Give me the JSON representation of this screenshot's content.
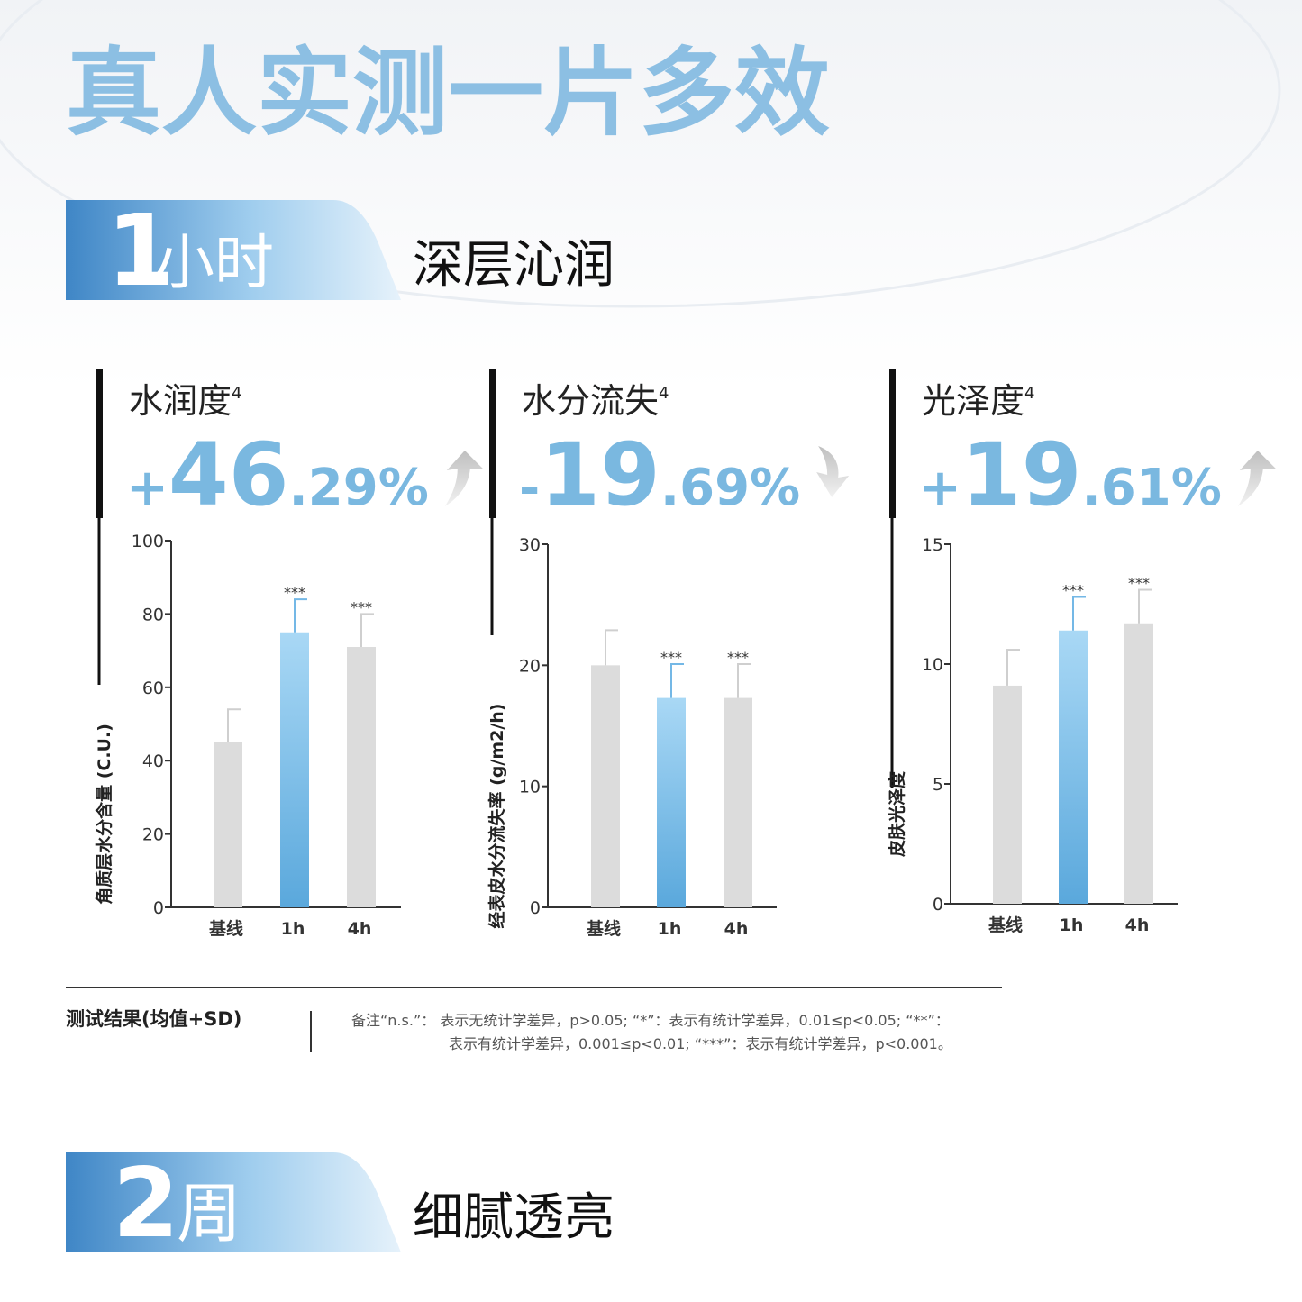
{
  "header": {
    "title": "真人实测一片多效"
  },
  "section1": {
    "number": "1",
    "unit": "小时",
    "label": "深层沁润"
  },
  "chart_data": [
    {
      "type": "bar",
      "title": "水润度",
      "title_sup": "4",
      "headline": [
        "+",
        "46",
        ".29%"
      ],
      "ylabel": "角质层水分含量 (C.U.)",
      "categories": [
        "基线",
        "1h",
        "4h"
      ],
      "values": [
        45,
        75,
        71
      ],
      "errors": [
        9,
        9,
        9
      ],
      "significance": [
        null,
        "***",
        "***"
      ],
      "colors": [
        "#dcdcdc",
        "#74b8e6",
        "#dcdcdc"
      ],
      "ylim": [
        0,
        100
      ],
      "yticks": [
        0,
        20,
        40,
        60,
        80,
        100
      ]
    },
    {
      "type": "bar",
      "title": "水分流失",
      "title_sup": "4",
      "headline": [
        "-",
        "19",
        ".69%"
      ],
      "ylabel": "经表皮水分流失率 (g/m2/h)",
      "categories": [
        "基线",
        "1h",
        "4h"
      ],
      "values": [
        20,
        17.3,
        17.3
      ],
      "errors": [
        2.9,
        2.8,
        2.8
      ],
      "significance": [
        null,
        "***",
        "***"
      ],
      "colors": [
        "#dcdcdc",
        "#74b8e6",
        "#dcdcdc"
      ],
      "ylim": [
        0,
        30
      ],
      "yticks": [
        0,
        10,
        20,
        30
      ]
    },
    {
      "type": "bar",
      "title": "光泽度",
      "title_sup": "4",
      "headline": [
        "+",
        "19",
        ".61%"
      ],
      "ylabel": "皮肤光泽度",
      "categories": [
        "基线",
        "1h",
        "4h"
      ],
      "values": [
        9.1,
        11.4,
        11.7
      ],
      "errors": [
        1.5,
        1.4,
        1.4
      ],
      "significance": [
        null,
        "***",
        "***"
      ],
      "colors": [
        "#dcdcdc",
        "#74b8e6",
        "#dcdcdc"
      ],
      "ylim": [
        0,
        15
      ],
      "yticks": [
        0,
        5,
        10,
        15
      ]
    }
  ],
  "footer": {
    "result_label": "测试结果(均值+SD)",
    "notes": [
      "备注“n.s.”： 表示无统计学差异，p>0.05; “*”：表示有统计学差异，0.01≤p<0.05; “**”：",
      "表示有统计学差异，0.001≤p<0.01; “***”：表示有统计学差异，p<0.001。"
    ]
  },
  "section2": {
    "number": "2",
    "unit": "周",
    "label": "细腻透亮"
  }
}
